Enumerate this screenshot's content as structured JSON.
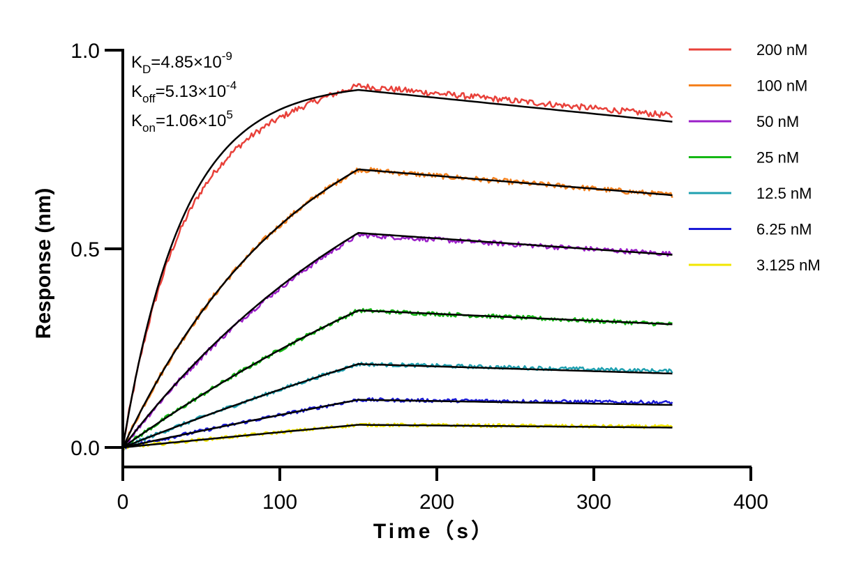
{
  "chart_data": {
    "type": "line",
    "title": "",
    "xlabel": "Time（s）",
    "ylabel": "Response (nm)",
    "xlim": [
      0,
      400
    ],
    "ylim": [
      -0.05,
      1.0
    ],
    "xticks": [
      0,
      100,
      200,
      300,
      400
    ],
    "xtick_labels": [
      "0",
      "100",
      "200",
      "300",
      "400"
    ],
    "yticks": [
      0.0,
      0.5,
      1.0
    ],
    "ytick_labels": [
      "0.0",
      "0.5",
      "1.0"
    ],
    "association_end": 150,
    "time_end": 350,
    "grid": false,
    "legend_position": "right",
    "fit_color": "#000000",
    "annotations": {
      "kd": {
        "base": "K",
        "sub": "D",
        "eq": "=4.85×10",
        "sup": "-9"
      },
      "koff": {
        "base": "K",
        "sub": "off",
        "eq": "=5.13×10",
        "sup": "-4"
      },
      "kon": {
        "base": "K",
        "sub": "on",
        "eq": "=1.06×10",
        "sup": "5"
      }
    },
    "series": [
      {
        "name": "200 nM",
        "color": "#e8413a",
        "plateau": 0.93,
        "ka": 0.026,
        "peak": 0.9,
        "end": 0.82,
        "data_peak": 0.91,
        "data_end": 0.835
      },
      {
        "name": "100 nM",
        "color": "#f5821f",
        "plateau": 0.95,
        "ka": 0.0088,
        "peak": 0.7,
        "end": 0.635,
        "data_peak": 0.7,
        "data_end": 0.635
      },
      {
        "name": "50 nM",
        "color": "#9b1fc8",
        "plateau": 1.0,
        "ka": 0.0052,
        "peak": 0.54,
        "end": 0.485,
        "data_peak": 0.535,
        "data_end": 0.487
      },
      {
        "name": "25 nM",
        "color": "#14b814",
        "plateau": 1.0,
        "ka": 0.0028,
        "peak": 0.345,
        "end": 0.31,
        "data_peak": 0.345,
        "data_end": 0.31
      },
      {
        "name": "12.5 nM",
        "color": "#1fa0b0",
        "plateau": 1.0,
        "ka": 0.0016,
        "peak": 0.21,
        "end": 0.186,
        "data_peak": 0.21,
        "data_end": 0.192
      },
      {
        "name": "6.25 nM",
        "color": "#1a1ad6",
        "plateau": 1.0,
        "ka": 0.00087,
        "peak": 0.12,
        "end": 0.107,
        "data_peak": 0.12,
        "data_end": 0.113
      },
      {
        "name": "3.125 nM",
        "color": "#f2e600",
        "plateau": 1.0,
        "ka": 0.0004,
        "peak": 0.057,
        "end": 0.05,
        "data_peak": 0.057,
        "data_end": 0.052
      }
    ]
  }
}
